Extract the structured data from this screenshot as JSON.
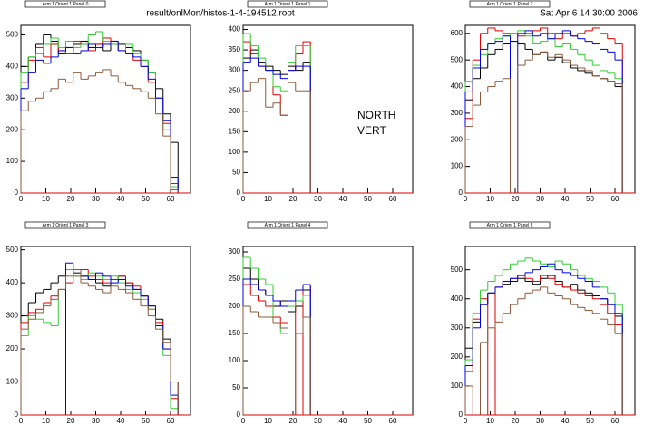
{
  "header": {
    "file": "result/onlMon/histos-1-4-194512.root",
    "date": "Sat Apr  6 14:30:00 2006"
  },
  "chart_data": [
    {
      "type": "histogram",
      "title": "Arm 1 Orient 1 Panel 0",
      "bins": [
        0,
        3,
        6,
        9,
        12,
        15,
        18,
        21,
        24,
        27,
        30,
        33,
        36,
        39,
        42,
        45,
        48,
        51,
        54,
        57,
        60,
        63,
        66
      ],
      "series": [
        {
          "color": "#000000",
          "values": [
            400,
            430,
            470,
            500,
            480,
            440,
            460,
            470,
            480,
            460,
            470,
            450,
            480,
            470,
            460,
            450,
            420,
            380,
            330,
            250,
            160,
            0
          ]
        },
        {
          "color": "#e00000",
          "values": [
            350,
            420,
            460,
            430,
            470,
            450,
            440,
            480,
            470,
            450,
            470,
            490,
            470,
            450,
            440,
            420,
            400,
            350,
            300,
            220,
            30,
            0
          ]
        },
        {
          "color": "#33cc33",
          "values": [
            380,
            430,
            440,
            470,
            490,
            460,
            480,
            460,
            470,
            500,
            510,
            480,
            470,
            450,
            470,
            440,
            420,
            380,
            300,
            200,
            20,
            0
          ]
        },
        {
          "color": "#0000dd",
          "values": [
            330,
            380,
            420,
            410,
            430,
            450,
            460,
            440,
            450,
            470,
            460,
            470,
            480,
            450,
            440,
            430,
            400,
            360,
            300,
            230,
            50,
            0
          ]
        },
        {
          "color": "#8b5a3c",
          "values": [
            260,
            290,
            300,
            320,
            330,
            360,
            350,
            380,
            360,
            370,
            380,
            390,
            370,
            350,
            340,
            330,
            320,
            300,
            250,
            180,
            10,
            0
          ]
        }
      ],
      "xlim": [
        0,
        68
      ],
      "xticks": [
        0,
        10,
        20,
        30,
        40,
        50,
        60
      ],
      "ylim": [
        0,
        530
      ],
      "yticks": [
        0,
        100,
        200,
        300,
        400,
        500
      ]
    },
    {
      "type": "histogram",
      "title": "Arm 1 Orient 1 Panel 1",
      "bins": [
        0,
        3,
        6,
        9,
        12,
        15,
        18,
        21,
        24,
        27
      ],
      "series": [
        {
          "color": "#000000",
          "values": [
            330,
            350,
            320,
            310,
            300,
            290,
            310,
            300,
            320
          ]
        },
        {
          "color": "#e00000",
          "values": [
            370,
            340,
            310,
            300,
            240,
            190,
            300,
            340,
            370
          ]
        },
        {
          "color": "#33cc33",
          "values": [
            390,
            360,
            330,
            300,
            260,
            250,
            320,
            360,
            360
          ]
        },
        {
          "color": "#0000dd",
          "values": [
            320,
            330,
            310,
            300,
            290,
            280,
            300,
            310,
            310
          ]
        },
        {
          "color": "#8b5a3c",
          "values": [
            250,
            270,
            280,
            210,
            220,
            190,
            270,
            250,
            250
          ]
        }
      ],
      "annotations": [
        "NORTH",
        "VERT"
      ],
      "xlim": [
        0,
        68
      ],
      "xticks": [
        0,
        10,
        20,
        30,
        40,
        50,
        60
      ],
      "ylim": [
        0,
        410
      ],
      "yticks": [
        0,
        50,
        100,
        150,
        200,
        250,
        300,
        350,
        400
      ]
    },
    {
      "type": "histogram",
      "title": "Arm 1 Orient 1 Panel 2",
      "bins": [
        0,
        3,
        6,
        9,
        12,
        15,
        18,
        21,
        24,
        27,
        30,
        33,
        36,
        39,
        42,
        45,
        48,
        51,
        54,
        57,
        60,
        63,
        66
      ],
      "series": [
        {
          "color": "#000000",
          "values": [
            350,
            430,
            470,
            520,
            540,
            560,
            570,
            560,
            540,
            520,
            530,
            500,
            510,
            490,
            470,
            460,
            450,
            440,
            430,
            420,
            400,
            0
          ]
        },
        {
          "color": "#e00000",
          "values": [
            280,
            500,
            600,
            620,
            610,
            600,
            600,
            590,
            600,
            610,
            620,
            600,
            580,
            600,
            590,
            600,
            610,
            620,
            600,
            580,
            560,
            0
          ]
        },
        {
          "color": "#33cc33",
          "values": [
            420,
            480,
            520,
            560,
            580,
            590,
            600,
            610,
            590,
            560,
            570,
            580,
            550,
            560,
            540,
            520,
            500,
            480,
            460,
            450,
            430,
            0
          ]
        },
        {
          "color": "#0000dd",
          "values": [
            380,
            470,
            540,
            560,
            570,
            590,
            0,
            600,
            610,
            590,
            600,
            580,
            600,
            610,
            590,
            580,
            570,
            560,
            540,
            530,
            500,
            0
          ]
        },
        {
          "color": "#8b5a3c",
          "values": [
            250,
            330,
            380,
            400,
            420,
            430,
            0,
            480,
            500,
            520,
            530,
            510,
            520,
            500,
            480,
            470,
            460,
            440,
            430,
            420,
            410,
            0
          ]
        }
      ],
      "xlim": [
        0,
        68
      ],
      "xticks": [
        0,
        10,
        20,
        30,
        40,
        50,
        60
      ],
      "ylim": [
        0,
        630
      ],
      "yticks": [
        0,
        100,
        200,
        300,
        400,
        500,
        600
      ]
    },
    {
      "type": "histogram",
      "title": "Arm 1 Orient 1 Panel 3",
      "bins": [
        0,
        3,
        6,
        9,
        12,
        15,
        18,
        21,
        24,
        27,
        30,
        33,
        36,
        39,
        42,
        45,
        48,
        51,
        54,
        57,
        60,
        63,
        66
      ],
      "series": [
        {
          "color": "#000000",
          "values": [
            300,
            340,
            370,
            380,
            400,
            420,
            440,
            430,
            420,
            410,
            400,
            390,
            410,
            420,
            400,
            380,
            360,
            330,
            290,
            230,
            100,
            0
          ]
        },
        {
          "color": "#e00000",
          "values": [
            280,
            310,
            320,
            340,
            360,
            380,
            400,
            420,
            440,
            420,
            410,
            400,
            410,
            420,
            400,
            390,
            360,
            320,
            280,
            200,
            50,
            0
          ]
        },
        {
          "color": "#33cc33",
          "values": [
            240,
            300,
            290,
            280,
            270,
            380,
            440,
            420,
            410,
            430,
            420,
            410,
            420,
            400,
            380,
            370,
            350,
            320,
            270,
            180,
            20,
            0
          ]
        },
        {
          "color": "#0000dd",
          "values": [
            0,
            0,
            0,
            0,
            0,
            0,
            460,
            440,
            420,
            410,
            430,
            420,
            400,
            410,
            390,
            380,
            360,
            330,
            270,
            200,
            60,
            0
          ]
        },
        {
          "color": "#8b5a3c",
          "values": [
            260,
            290,
            310,
            330,
            350,
            380,
            420,
            440,
            400,
            390,
            380,
            370,
            390,
            380,
            370,
            350,
            330,
            300,
            260,
            220,
            100,
            0
          ]
        }
      ],
      "xlim": [
        0,
        68
      ],
      "xticks": [
        0,
        10,
        20,
        30,
        40,
        50,
        60
      ],
      "ylim": [
        0,
        510
      ],
      "yticks": [
        0,
        100,
        200,
        300,
        400,
        500
      ]
    },
    {
      "type": "histogram",
      "title": "Arm 1 Orient 1 Panel 4",
      "bins": [
        0,
        3,
        6,
        9,
        12,
        15,
        18,
        21,
        24,
        27
      ],
      "series": [
        {
          "color": "#000000",
          "values": [
            270,
            250,
            230,
            220,
            200,
            210,
            190,
            200,
            230
          ]
        },
        {
          "color": "#e00000",
          "values": [
            240,
            220,
            210,
            200,
            180,
            170,
            210,
            0,
            240
          ]
        },
        {
          "color": "#33cc33",
          "values": [
            290,
            270,
            250,
            240,
            170,
            150,
            200,
            210,
            220
          ]
        },
        {
          "color": "#0000dd",
          "values": [
            250,
            240,
            230,
            220,
            210,
            200,
            210,
            230,
            240
          ]
        },
        {
          "color": "#8b5a3c",
          "values": [
            200,
            190,
            180,
            180,
            170,
            160,
            0,
            150,
            180
          ]
        }
      ],
      "xlim": [
        0,
        68
      ],
      "xticks": [
        0,
        10,
        20,
        30,
        40,
        50,
        60
      ],
      "ylim": [
        0,
        310
      ],
      "yticks": [
        0,
        50,
        100,
        150,
        200,
        250,
        300
      ]
    },
    {
      "type": "histogram",
      "title": "Arm 1 Orient 1 Panel 5",
      "bins": [
        0,
        3,
        6,
        9,
        12,
        15,
        18,
        21,
        24,
        27,
        30,
        33,
        36,
        39,
        42,
        45,
        48,
        51,
        54,
        57,
        60,
        63,
        66
      ],
      "series": [
        {
          "color": "#000000",
          "values": [
            230,
            320,
            380,
            420,
            440,
            450,
            460,
            470,
            460,
            450,
            470,
            480,
            460,
            440,
            450,
            430,
            420,
            410,
            400,
            380,
            340,
            0
          ]
        },
        {
          "color": "#e00000",
          "values": [
            150,
            330,
            400,
            0,
            440,
            460,
            470,
            480,
            470,
            460,
            480,
            470,
            450,
            440,
            430,
            420,
            410,
            400,
            380,
            350,
            310,
            0
          ]
        },
        {
          "color": "#33cc33",
          "values": [
            190,
            350,
            430,
            460,
            480,
            500,
            520,
            530,
            540,
            530,
            520,
            510,
            530,
            520,
            500,
            480,
            470,
            460,
            440,
            420,
            380,
            0
          ]
        },
        {
          "color": "#0000dd",
          "values": [
            170,
            300,
            380,
            420,
            440,
            460,
            470,
            480,
            490,
            500,
            510,
            520,
            500,
            490,
            480,
            470,
            460,
            440,
            400,
            380,
            350,
            0
          ]
        },
        {
          "color": "#8b5a3c",
          "values": [
            100,
            0,
            250,
            300,
            320,
            350,
            380,
            400,
            420,
            430,
            440,
            420,
            410,
            400,
            380,
            370,
            360,
            350,
            330,
            310,
            280,
            0
          ]
        }
      ],
      "xlim": [
        0,
        68
      ],
      "xticks": [
        0,
        10,
        20,
        30,
        40,
        50,
        60
      ],
      "ylim": [
        0,
        580
      ],
      "yticks": [
        0,
        100,
        200,
        300,
        400,
        500
      ]
    }
  ]
}
